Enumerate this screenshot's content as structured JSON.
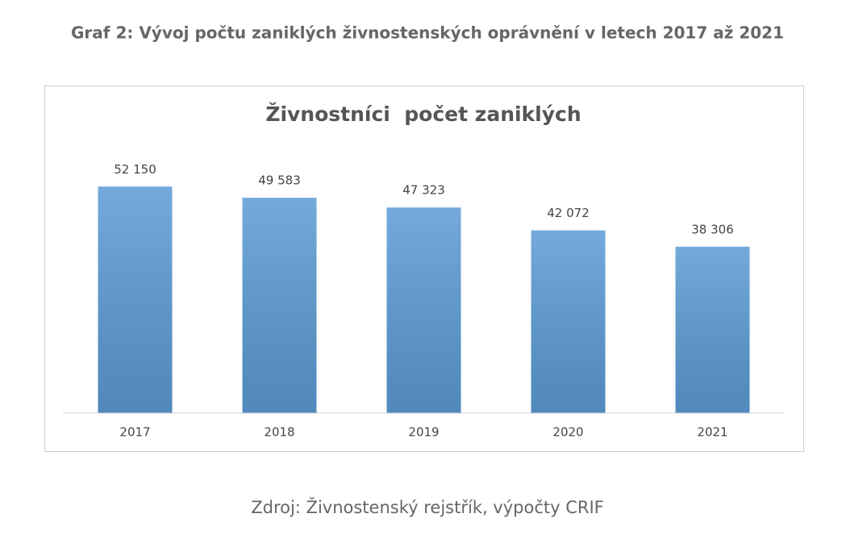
{
  "heading": "Graf 2: Vývoj počtu zaniklých živnostenských oprávnění v letech 2017 až 2021",
  "source": "Zdroj: Živnostenský rejstřík, výpočty CRIF",
  "chart_data": {
    "type": "bar",
    "title": "Živnostníci  počet zaniklých",
    "categories": [
      "2017",
      "2018",
      "2019",
      "2020",
      "2021"
    ],
    "values": [
      52150,
      49583,
      47323,
      42072,
      38306
    ],
    "value_labels": [
      "52 150",
      "49 583",
      "47 323",
      "42 072",
      "38 306"
    ],
    "color": "#5b9bd5",
    "ylim": [
      0,
      60000
    ]
  }
}
